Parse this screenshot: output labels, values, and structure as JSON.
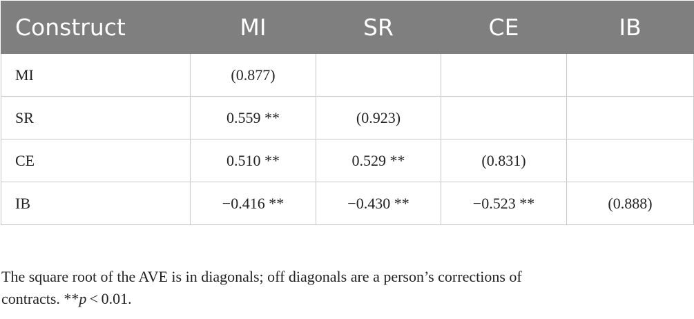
{
  "table": {
    "headers": [
      "Construct",
      "MI",
      "SR",
      "CE",
      "IB"
    ],
    "rows": [
      [
        "MI",
        "(0.877)",
        "",
        "",
        ""
      ],
      [
        "SR",
        "0.559 **",
        "(0.923)",
        "",
        ""
      ],
      [
        "CE",
        "0.510 **",
        "0.529 **",
        "(0.831)",
        ""
      ],
      [
        "IB",
        "−0.416 **",
        "−0.430 **",
        "−0.523 **",
        "(0.888)"
      ]
    ]
  },
  "footnote": {
    "line1": "The square root of the AVE is in diagonals; off diagonals are a person’s corrections of",
    "line2_prefix": "contracts. **",
    "line2_p": "p",
    "line2_suffix": " < 0.01."
  }
}
